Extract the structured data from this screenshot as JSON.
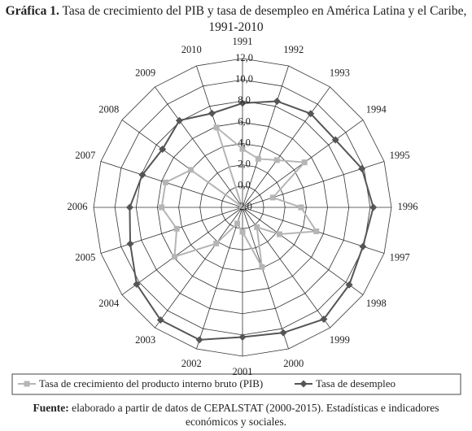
{
  "chart_data": {
    "type": "radar",
    "figure_label": "Gráfica 1.",
    "title": "Tasa de crecimiento del PIB y tasa de desempleo en América Latina y el Caribe, 1991-2010",
    "categories": [
      "1991",
      "1992",
      "1993",
      "1994",
      "1995",
      "1996",
      "1997",
      "1998",
      "1999",
      "2000",
      "2001",
      "2002",
      "2003",
      "2004",
      "2005",
      "2006",
      "2007",
      "2008",
      "2009",
      "2010"
    ],
    "series": [
      {
        "name": "Tasa de crecimiento del producto interno bruto (PIB)",
        "color": "#b5b5b5",
        "marker": "square",
        "values": [
          3.5,
          2.8,
          3.5,
          5.2,
          1.0,
          3.5,
          5.3,
          2.3,
          0.3,
          3.9,
          0.3,
          -0.4,
          2.2,
          5.9,
          4.5,
          5.6,
          5.6,
          4.0,
          -1.9,
          5.9
        ]
      },
      {
        "name": "Tasa de desempleo",
        "color": "#555555",
        "marker": "diamond",
        "values": [
          7.8,
          8.5,
          8.9,
          8.8,
          9.8,
          10.3,
          9.9,
          10.4,
          11.0,
          10.4,
          10.2,
          11.1,
          11.1,
          10.3,
          9.1,
          8.6,
          7.9,
          7.3,
          8.1,
          7.3
        ]
      }
    ],
    "rlim": [
      -2,
      12
    ],
    "rticks": [
      {
        "value": -2,
        "label": "-2,0"
      },
      {
        "value": 0,
        "label": "0,0"
      },
      {
        "value": 2,
        "label": "2,0"
      },
      {
        "value": 4,
        "label": "4,0"
      },
      {
        "value": 6,
        "label": "6,0"
      },
      {
        "value": 8,
        "label": "8,0"
      },
      {
        "value": 10,
        "label": "10,0"
      },
      {
        "value": 12,
        "label": "12,0"
      }
    ],
    "grid": true,
    "legend": "bottom"
  },
  "source": {
    "label": "Fuente:",
    "text": "elaborado a partir de datos de CEPALSTAT (2000-2015). Estadísticas e indicadores económicos y sociales."
  }
}
